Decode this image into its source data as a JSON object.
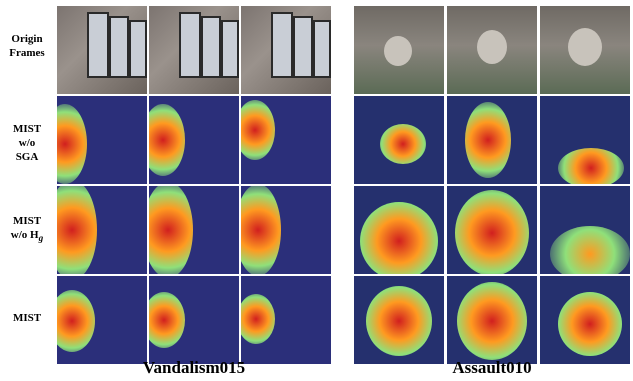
{
  "row_labels": {
    "origin": [
      "Origin",
      "Frames"
    ],
    "mist_no_sga": [
      "MIST",
      "w/o",
      "SGA"
    ],
    "mist_no_hg": [
      "MIST",
      "w/o H",
      "g"
    ],
    "mist": "MIST"
  },
  "columns": {
    "left_title": "Vandalism015",
    "right_title": "Assault010"
  },
  "colors": {
    "heat_hot": "#d11f1f",
    "heat_warm": "#ffb020",
    "heat_mid": "#8fe07a",
    "heat_cool": "#2b2f7a"
  }
}
